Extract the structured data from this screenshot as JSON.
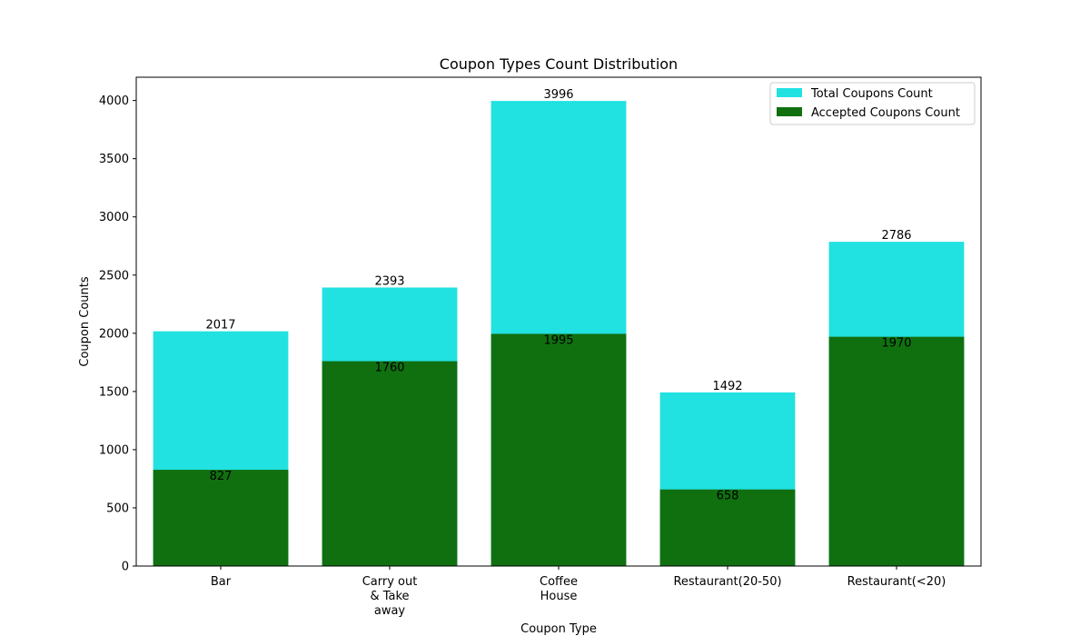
{
  "chart_data": {
    "type": "bar",
    "title": "Coupon Types Count Distribution",
    "xlabel": "Coupon Type",
    "ylabel": "Coupon Counts",
    "categories": [
      [
        "Bar"
      ],
      [
        "Carry out",
        "& Take",
        "away"
      ],
      [
        "Coffee",
        "House"
      ],
      [
        "Restaurant(20-50)"
      ],
      [
        "Restaurant(<20)"
      ]
    ],
    "ylim": [
      0,
      4200
    ],
    "yticks": [
      0,
      500,
      1000,
      1500,
      2000,
      2500,
      3000,
      3500,
      4000
    ],
    "series": [
      {
        "name": "Total Coupons Count",
        "color": "#22e1e1",
        "values": [
          2017,
          2393,
          3996,
          1492,
          2786
        ]
      },
      {
        "name": "Accepted Coupons Count",
        "color": "#107010",
        "values": [
          827,
          1760,
          1995,
          658,
          1970
        ]
      }
    ],
    "legend": "top-right",
    "grid": false
  }
}
